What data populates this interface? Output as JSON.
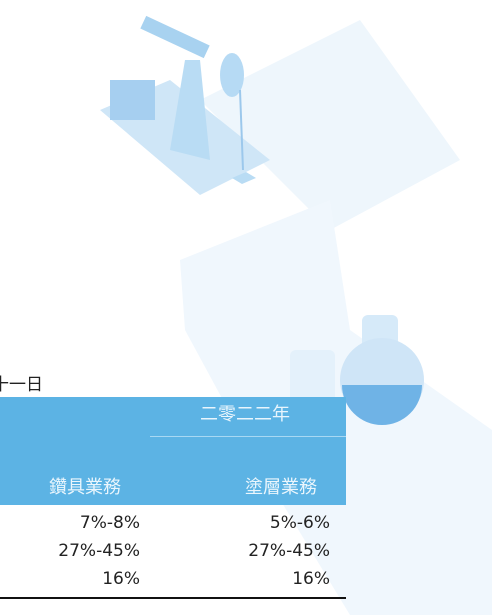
{
  "heading": "十一日",
  "table": {
    "group_header": "二零二二年",
    "columns": [
      "鑽具業務",
      "塗層業務"
    ],
    "rows": [
      [
        "7%-8%",
        "5%-6%"
      ],
      [
        "27%-45%",
        "27%-45%"
      ],
      [
        "16%",
        "16%"
      ]
    ]
  }
}
